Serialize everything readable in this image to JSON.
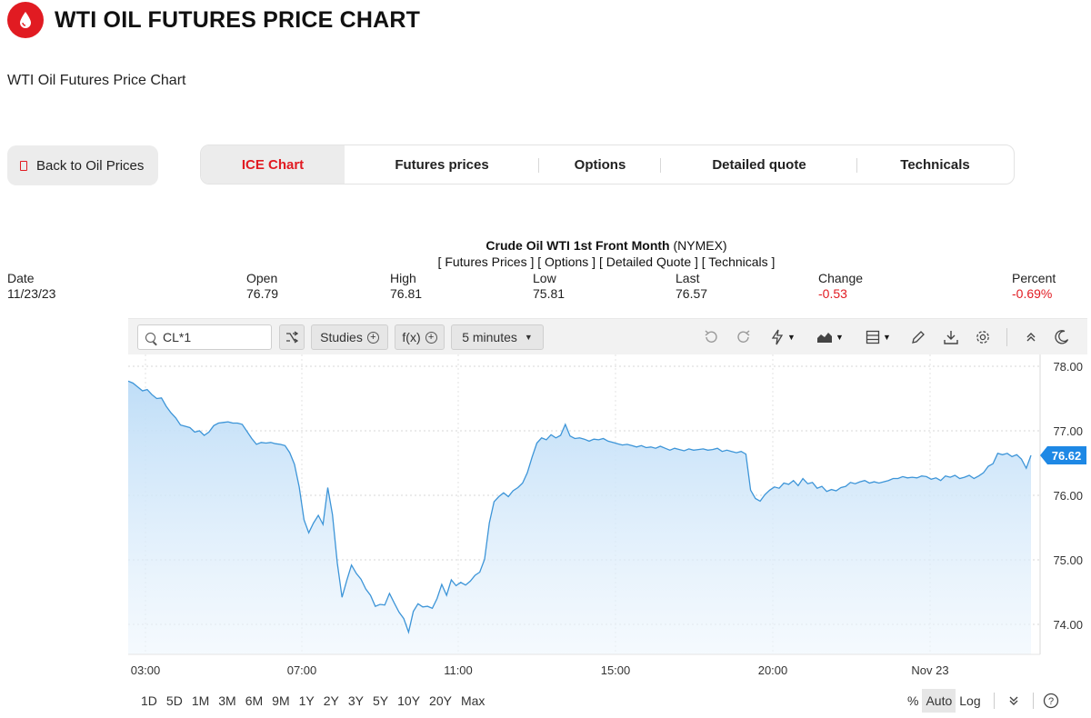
{
  "page": {
    "title": "WTI OIL FUTURES PRICE CHART",
    "subtitle": "WTI Oil Futures Price Chart"
  },
  "nav": {
    "back_label": "Back to Oil Prices",
    "tabs": [
      "ICE Chart",
      "Futures prices",
      "Options",
      "Detailed quote",
      "Technicals"
    ],
    "active_tab": "ICE Chart"
  },
  "quote": {
    "name": "Crude Oil WTI 1st Front Month",
    "exchange": "(NYMEX)",
    "links": "[ Futures Prices ] [ Options ] [ Detailed Quote ] [ Technicals ]",
    "stats": [
      {
        "label": "Date",
        "value": "11/23/23"
      },
      {
        "label": "Open",
        "value": "76.79"
      },
      {
        "label": "High",
        "value": "76.81"
      },
      {
        "label": "Low",
        "value": "75.81"
      },
      {
        "label": "Last",
        "value": "76.57"
      },
      {
        "label": "Change",
        "value": "-0.53"
      },
      {
        "label": "Percent",
        "value": "-0.69%"
      }
    ]
  },
  "toolbar": {
    "symbol": "CL*1",
    "studies_label": "Studies",
    "fx_label": "f(x)",
    "interval_label": "5 minutes"
  },
  "ranges": [
    "1D",
    "5D",
    "1M",
    "3M",
    "6M",
    "9M",
    "1Y",
    "2Y",
    "3Y",
    "5Y",
    "10Y",
    "20Y",
    "Max"
  ],
  "scales": [
    "%",
    "Auto",
    "Log"
  ],
  "active_scale": "Auto",
  "colors": {
    "brand": "#e11b22",
    "line": "#3d95d8",
    "negative": "#e11b22"
  },
  "chart_data": {
    "type": "area",
    "x_tick_labels": [
      "03:00",
      "07:00",
      "11:00",
      "15:00",
      "20:00",
      "Nov 23"
    ],
    "y_tick_labels": [
      "78.00",
      "77.00",
      "76.00",
      "75.00",
      "74.00"
    ],
    "ylim": [
      73.6,
      78.2
    ],
    "last_price": "76.62",
    "grid": true,
    "values": [
      77.77,
      77.74,
      77.68,
      77.62,
      77.64,
      77.56,
      77.5,
      77.51,
      77.38,
      77.28,
      77.2,
      77.09,
      77.07,
      77.05,
      76.98,
      77.0,
      76.93,
      76.98,
      77.08,
      77.12,
      77.13,
      77.14,
      77.12,
      77.12,
      77.1,
      76.99,
      76.88,
      76.79,
      76.82,
      76.81,
      76.82,
      76.8,
      76.79,
      76.77,
      76.66,
      76.48,
      76.13,
      75.62,
      75.42,
      75.57,
      75.69,
      75.55,
      76.12,
      75.7,
      74.95,
      74.42,
      74.68,
      74.92,
      74.79,
      74.7,
      74.55,
      74.45,
      74.28,
      74.31,
      74.3,
      74.48,
      74.33,
      74.19,
      74.09,
      73.88,
      74.2,
      74.32,
      74.27,
      74.28,
      74.25,
      74.4,
      74.62,
      74.45,
      74.69,
      74.6,
      74.65,
      74.61,
      74.67,
      74.76,
      74.81,
      75.01,
      75.57,
      75.9,
      75.98,
      76.04,
      75.98,
      76.07,
      76.12,
      76.19,
      76.35,
      76.59,
      76.81,
      76.89,
      76.86,
      76.94,
      76.89,
      76.93,
      77.1,
      76.92,
      76.88,
      76.89,
      76.87,
      76.84,
      76.87,
      76.86,
      76.88,
      76.84,
      76.82,
      76.8,
      76.78,
      76.79,
      76.77,
      76.75,
      76.77,
      76.74,
      76.75,
      76.73,
      76.76,
      76.73,
      76.7,
      76.73,
      76.71,
      76.69,
      76.72,
      76.7,
      76.71,
      76.72,
      76.7,
      76.71,
      76.73,
      76.68,
      76.7,
      76.68,
      76.66,
      76.68,
      76.64,
      76.08,
      75.95,
      75.91,
      76.01,
      76.08,
      76.13,
      76.11,
      76.19,
      76.17,
      76.23,
      76.15,
      76.26,
      76.18,
      76.2,
      76.11,
      76.14,
      76.06,
      76.09,
      76.07,
      76.12,
      76.14,
      76.2,
      76.18,
      76.21,
      76.23,
      76.19,
      76.21,
      76.19,
      76.21,
      76.23,
      76.26,
      76.26,
      76.29,
      76.27,
      76.28,
      76.27,
      76.3,
      76.29,
      76.25,
      76.27,
      76.23,
      76.3,
      76.28,
      76.31,
      76.26,
      76.28,
      76.31,
      76.26,
      76.3,
      76.35,
      76.45,
      76.49,
      76.65,
      76.63,
      76.65,
      76.6,
      76.63,
      76.56,
      76.42,
      76.62
    ]
  }
}
